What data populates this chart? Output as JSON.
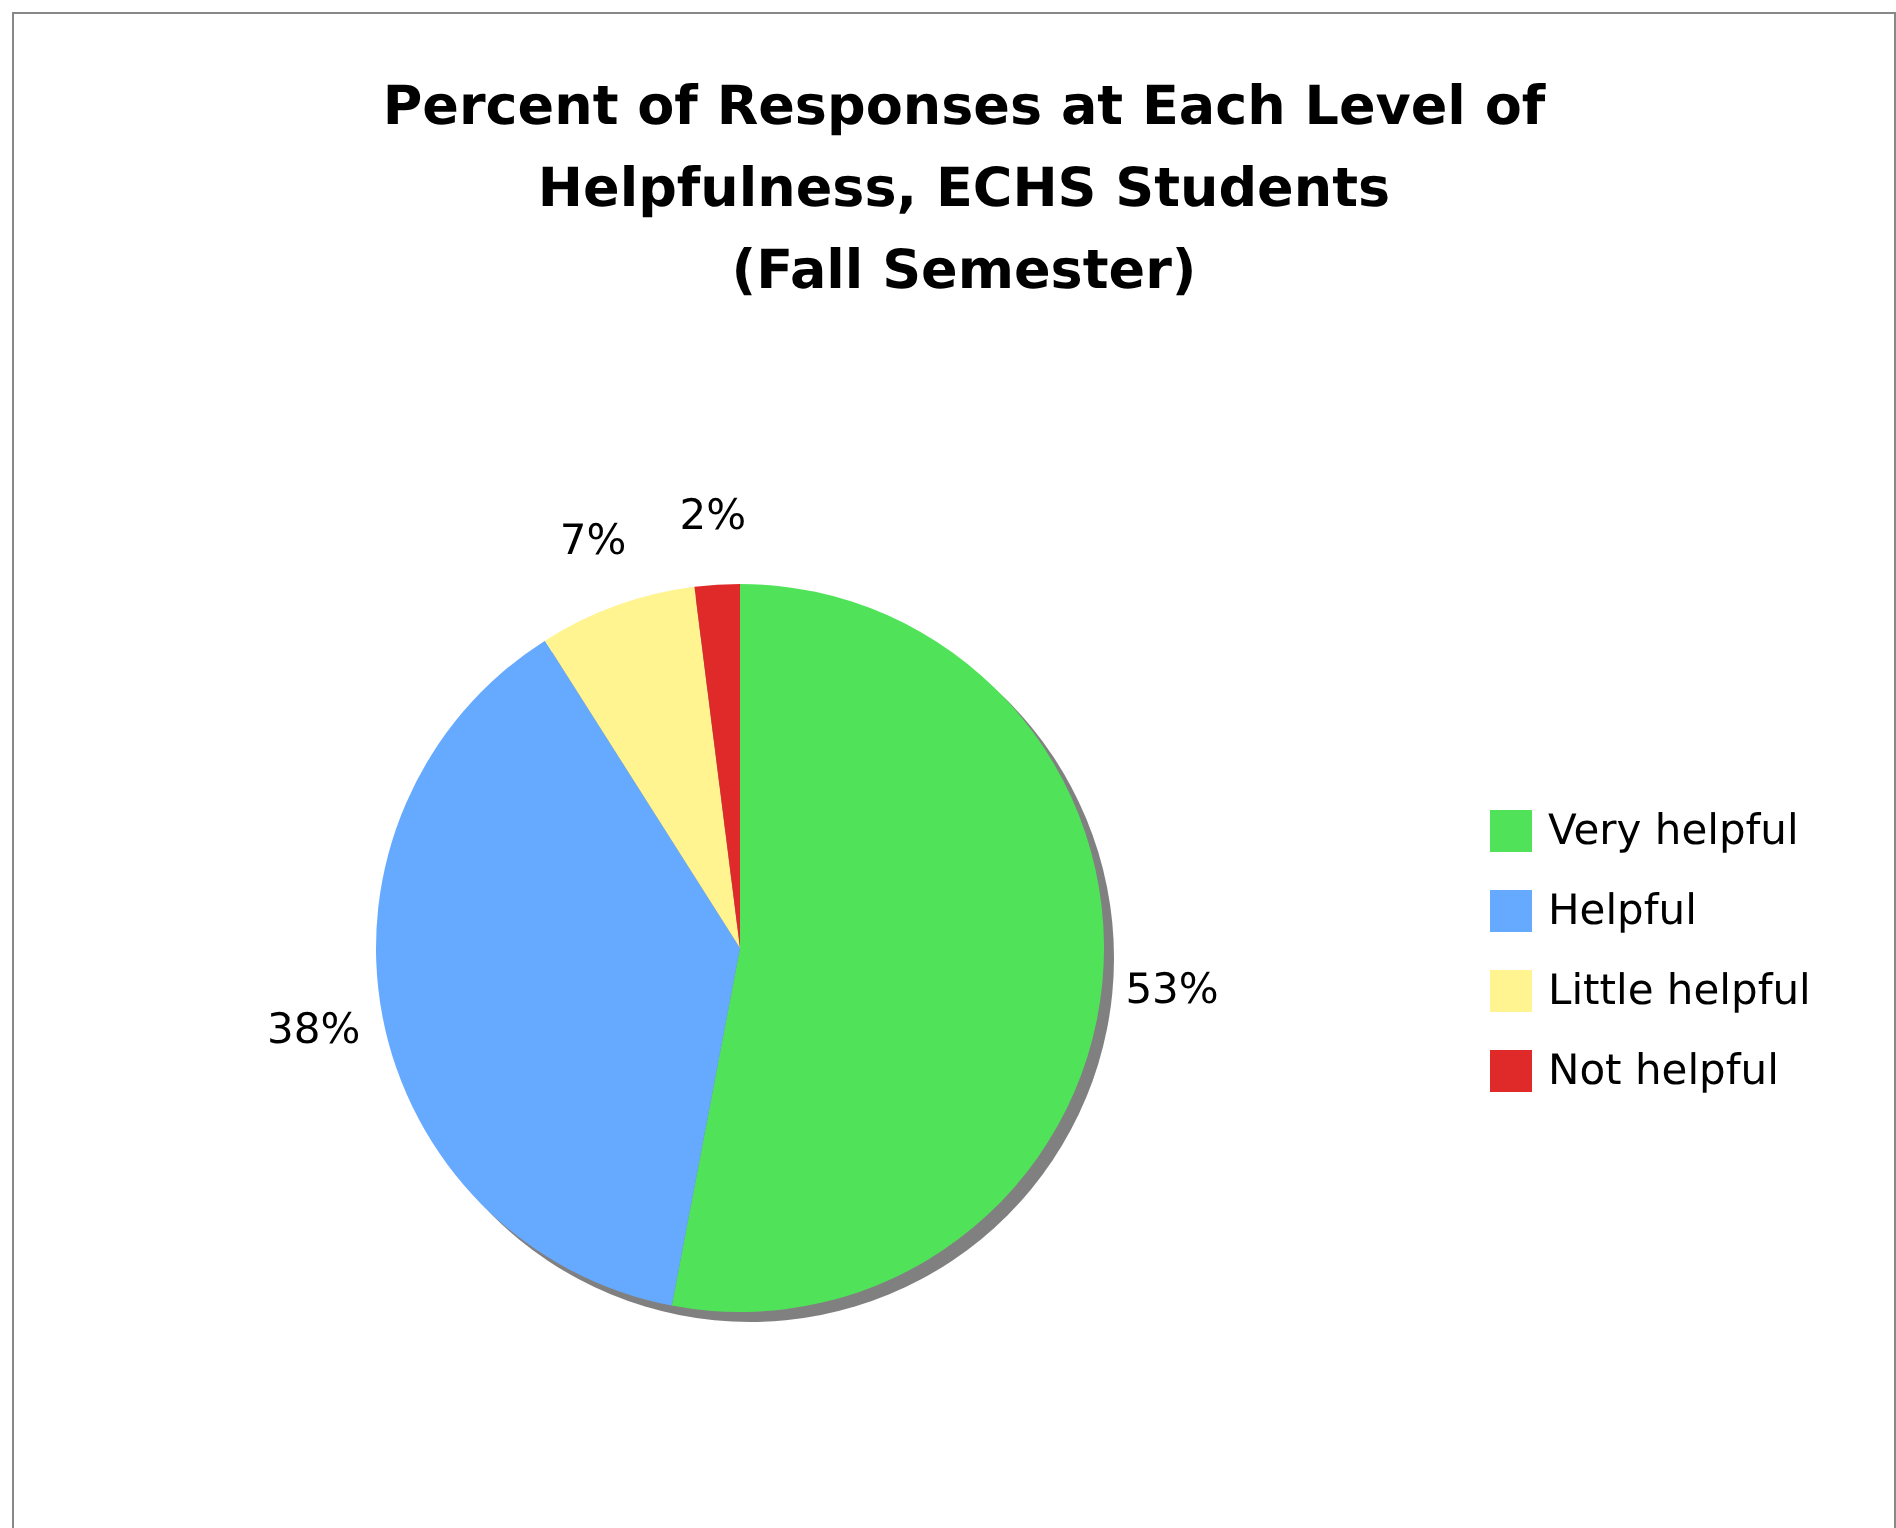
{
  "chart_data": {
    "type": "pie",
    "title": "Percent of Responses at Each Level of\nHelpfulness, ECHS Students\n(Fall Semester)",
    "categories": [
      "Very helpful",
      "Helpful",
      "Little helpful",
      "Not helpful"
    ],
    "values": [
      53,
      38,
      7,
      2
    ],
    "colors": [
      "#50e35a",
      "#66aaff",
      "#fff490",
      "#e02a2a"
    ],
    "value_labels": [
      "53%",
      "38%",
      "7%",
      "2%"
    ],
    "legend": "right"
  }
}
